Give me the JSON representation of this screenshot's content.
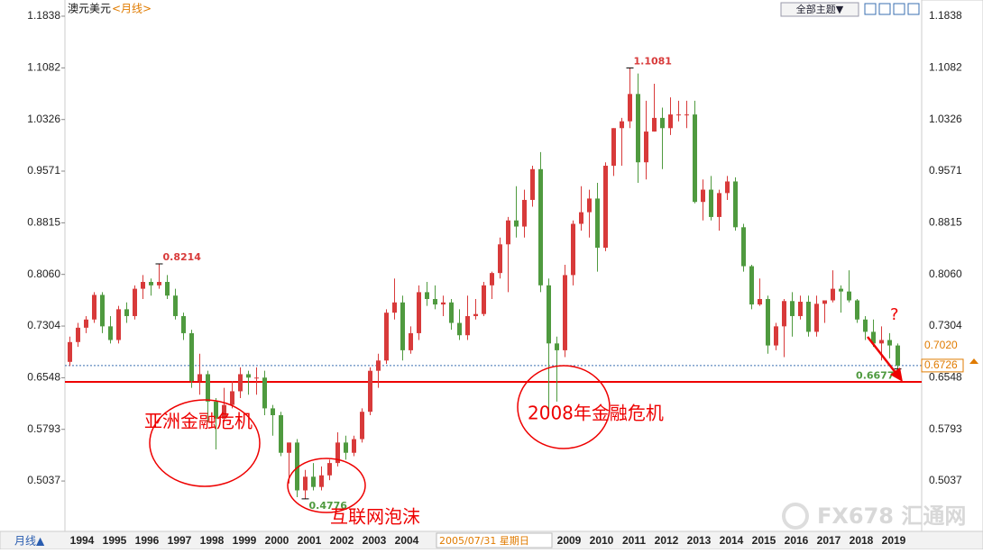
{
  "header": {
    "symbol": "澳元美元",
    "period": "<月线>",
    "theme_button": "全部主题▼"
  },
  "footer": {
    "period_button": "月线▲",
    "tooltip": "2005/07/31 星期日",
    "watermark": "FX678 汇通网"
  },
  "chart_data": {
    "type": "candlestick",
    "categories": [
      "1994",
      "1995",
      "1996",
      "1997",
      "1998",
      "1999",
      "2000",
      "2001",
      "2002",
      "2003",
      "2004",
      null,
      null,
      null,
      null,
      "2009",
      "2010",
      "2011",
      "2012",
      "2013",
      "2014",
      "2015",
      "2016",
      "2017",
      "2018",
      "2019"
    ],
    "up_color": "#d83a3a",
    "down_color": "#4f9a3f",
    "ylim": [
      0.43,
      1.2009
    ],
    "yticks": [
      0.5037,
      0.5793,
      0.6548,
      0.7304,
      {
        "value": 0.806,
        "label": "0.8060"
      },
      0.8815,
      0.9571,
      1.0326,
      1.1082,
      1.1838
    ],
    "candles": [
      [
        0.678,
        0.715,
        0.672,
        0.707
      ],
      [
        0.707,
        0.735,
        0.7,
        0.728
      ],
      [
        0.728,
        0.745,
        0.72,
        0.74
      ],
      [
        0.74,
        0.78,
        0.735,
        0.776
      ],
      [
        0.776,
        0.78,
        0.72,
        0.73
      ],
      [
        0.73,
        0.745,
        0.705,
        0.71
      ],
      [
        0.71,
        0.76,
        0.705,
        0.755
      ],
      [
        0.755,
        0.765,
        0.735,
        0.745
      ],
      [
        0.745,
        0.79,
        0.74,
        0.785
      ],
      [
        0.785,
        0.805,
        0.77,
        0.795
      ],
      [
        0.795,
        0.8,
        0.775,
        0.79
      ],
      [
        0.79,
        0.8214,
        0.785,
        0.795
      ],
      [
        0.795,
        0.805,
        0.77,
        0.775
      ],
      [
        0.775,
        0.785,
        0.74,
        0.745
      ],
      [
        0.745,
        0.75,
        0.71,
        0.72
      ],
      [
        0.72,
        0.725,
        0.64,
        0.65
      ],
      [
        0.65,
        0.69,
        0.63,
        0.66
      ],
      [
        0.66,
        0.665,
        0.59,
        0.62
      ],
      [
        0.62,
        0.625,
        0.55,
        0.595
      ],
      [
        0.595,
        0.64,
        0.59,
        0.615
      ],
      [
        0.615,
        0.65,
        0.61,
        0.635
      ],
      [
        0.635,
        0.67,
        0.625,
        0.66
      ],
      [
        0.66,
        0.665,
        0.63,
        0.655
      ],
      [
        0.655,
        0.67,
        0.63,
        0.655
      ],
      [
        0.655,
        0.665,
        0.6,
        0.61
      ],
      [
        0.61,
        0.615,
        0.57,
        0.6
      ],
      [
        0.6,
        0.605,
        0.54,
        0.545
      ],
      [
        0.545,
        0.56,
        0.5,
        0.56
      ],
      [
        0.56,
        0.565,
        0.48,
        0.49
      ],
      [
        0.49,
        0.52,
        0.4776,
        0.51
      ],
      [
        0.51,
        0.53,
        0.49,
        0.495
      ],
      [
        0.495,
        0.525,
        0.49,
        0.512
      ],
      [
        0.512,
        0.535,
        0.505,
        0.53
      ],
      [
        0.53,
        0.575,
        0.525,
        0.56
      ],
      [
        0.56,
        0.57,
        0.535,
        0.545
      ],
      [
        0.545,
        0.57,
        0.54,
        0.565
      ],
      [
        0.565,
        0.61,
        0.56,
        0.605
      ],
      [
        0.605,
        0.67,
        0.6,
        0.665
      ],
      [
        0.665,
        0.69,
        0.64,
        0.68
      ],
      [
        0.68,
        0.755,
        0.675,
        0.75
      ],
      [
        0.75,
        0.8,
        0.74,
        0.765
      ],
      [
        0.765,
        0.775,
        0.68,
        0.695
      ],
      [
        0.695,
        0.73,
        0.69,
        0.72
      ],
      [
        0.72,
        0.79,
        0.71,
        0.78
      ],
      [
        0.78,
        0.795,
        0.76,
        0.77
      ],
      [
        0.77,
        0.79,
        0.755,
        0.762
      ],
      [
        0.762,
        0.775,
        0.745,
        0.765
      ],
      [
        0.765,
        0.77,
        0.725,
        0.735
      ],
      [
        0.735,
        0.755,
        0.71,
        0.717
      ],
      [
        0.717,
        0.775,
        0.71,
        0.745
      ],
      [
        0.745,
        0.77,
        0.74,
        0.748
      ],
      [
        0.748,
        0.795,
        0.745,
        0.79
      ],
      [
        0.79,
        0.81,
        0.77,
        0.808
      ],
      [
        0.808,
        0.86,
        0.8,
        0.85
      ],
      [
        0.85,
        0.89,
        0.78,
        0.885
      ],
      [
        0.885,
        0.935,
        0.86,
        0.876
      ],
      [
        0.876,
        0.93,
        0.86,
        0.915
      ],
      [
        0.915,
        0.965,
        0.905,
        0.96
      ],
      [
        0.96,
        0.985,
        0.78,
        0.79
      ],
      [
        0.79,
        0.8,
        0.6,
        0.705
      ],
      [
        0.705,
        0.715,
        0.62,
        0.695
      ],
      [
        0.695,
        0.82,
        0.685,
        0.805
      ],
      [
        0.805,
        0.885,
        0.79,
        0.88
      ],
      [
        0.88,
        0.935,
        0.87,
        0.897
      ],
      [
        0.897,
        0.93,
        0.86,
        0.917
      ],
      [
        0.917,
        0.94,
        0.81,
        0.845
      ],
      [
        0.845,
        0.97,
        0.84,
        0.965
      ],
      [
        0.965,
        1.02,
        0.95,
        1.02
      ],
      [
        1.02,
        1.035,
        0.965,
        1.03
      ],
      [
        1.03,
        1.1081,
        1.02,
        1.07
      ],
      [
        1.07,
        1.1,
        0.94,
        0.97
      ],
      [
        0.97,
        1.06,
        0.945,
        1.015
      ],
      [
        1.015,
        1.085,
        1.015,
        1.035
      ],
      [
        1.035,
        1.05,
        0.96,
        1.02
      ],
      [
        1.02,
        1.065,
        1.01,
        1.04
      ],
      [
        1.04,
        1.06,
        1.03,
        1.04
      ],
      [
        1.04,
        1.06,
        1.02,
        1.04
      ],
      [
        1.04,
        1.06,
        0.91,
        0.912
      ],
      [
        0.912,
        0.945,
        0.885,
        0.93
      ],
      [
        0.93,
        0.95,
        0.885,
        0.89
      ],
      [
        0.89,
        0.93,
        0.87,
        0.925
      ],
      [
        0.925,
        0.95,
        0.915,
        0.942
      ],
      [
        0.942,
        0.948,
        0.87,
        0.875
      ],
      [
        0.875,
        0.88,
        0.81,
        0.818
      ],
      [
        0.818,
        0.82,
        0.755,
        0.762
      ],
      [
        0.762,
        0.8,
        0.76,
        0.77
      ],
      [
        0.77,
        0.775,
        0.69,
        0.702
      ],
      [
        0.702,
        0.735,
        0.695,
        0.73
      ],
      [
        0.73,
        0.77,
        0.685,
        0.767
      ],
      [
        0.767,
        0.78,
        0.715,
        0.745
      ],
      [
        0.745,
        0.775,
        0.74,
        0.766
      ],
      [
        0.766,
        0.775,
        0.715,
        0.722
      ],
      [
        0.722,
        0.775,
        0.715,
        0.763
      ],
      [
        0.763,
        0.765,
        0.735,
        0.768
      ],
      [
        0.768,
        0.812,
        0.765,
        0.785
      ],
      [
        0.785,
        0.79,
        0.75,
        0.781
      ],
      [
        0.781,
        0.812,
        0.765,
        0.768
      ],
      [
        0.768,
        0.77,
        0.735,
        0.74
      ],
      [
        0.74,
        0.745,
        0.71,
        0.722
      ],
      [
        0.722,
        0.74,
        0.7,
        0.705
      ],
      [
        0.705,
        0.73,
        0.68,
        0.71
      ],
      [
        0.71,
        0.72,
        0.6832,
        0.702
      ],
      [
        0.702,
        0.705,
        0.6677,
        0.6726
      ]
    ],
    "extremes": [
      0.8214,
      1.1081,
      0.4776,
      0.6677
    ],
    "support_level": 0.6487,
    "price_labels": [
      {
        "value": 0.702,
        "label": "0.7020"
      },
      0.6726
    ],
    "events": [
      "亚洲金融危机",
      "互联网泡沫",
      "2008年金融危机",
      "?"
    ]
  }
}
